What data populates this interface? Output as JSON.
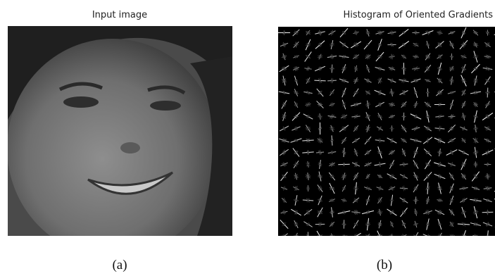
{
  "panels": [
    {
      "title": "Input image",
      "caption": "(a)"
    },
    {
      "title": "Histogram of Oriented Gradients",
      "caption": "(b)"
    }
  ]
}
